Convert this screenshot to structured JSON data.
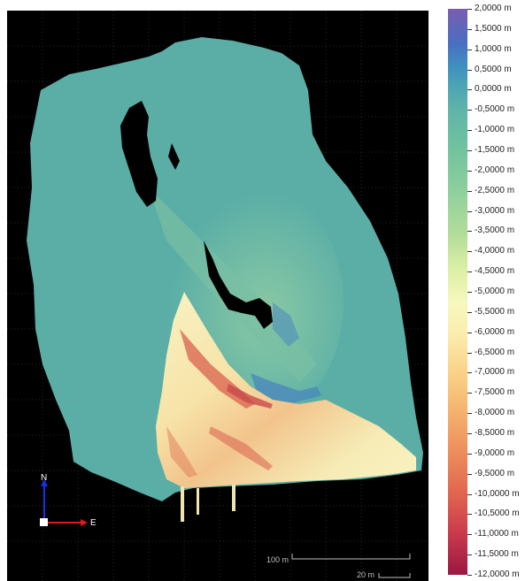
{
  "legend": {
    "labels": [
      "2,0000 m",
      "1,5000 m",
      "1,0000 m",
      "0,5000 m",
      "0,0000 m",
      "-0,5000 m",
      "-1,0000 m",
      "-1,5000 m",
      "-2,0000 m",
      "-2,5000 m",
      "-3,0000 m",
      "-3,5000 m",
      "-4,0000 m",
      "-4,5000 m",
      "-5,0000 m",
      "-5,5000 m",
      "-6,0000 m",
      "-6,5000 m",
      "-7,0000 m",
      "-7,5000 m",
      "-8,0000 m",
      "-8,5000 m",
      "-9,0000 m",
      "-9,5000 m",
      "-10,0000 m",
      "-10,5000 m",
      "-11,0000 m",
      "-11,5000 m",
      "-12,0000 m"
    ]
  },
  "axes": {
    "north_label": "N",
    "east_label": "E"
  },
  "scalebars": {
    "large_label": "100 m",
    "small_label": "20 m"
  },
  "colors": {
    "background": "#000000",
    "terrain_base": "#5aaea6",
    "terrain_light": "#7bc0a4",
    "depression_high": "#f7f2bd",
    "depression_mid": "#f3c98e",
    "depression_low": "#d9604f",
    "depression_deep": "#9a1744",
    "rise": "#3f78be",
    "north_axis": "#1530e6",
    "east_axis": "#e01a1a"
  }
}
